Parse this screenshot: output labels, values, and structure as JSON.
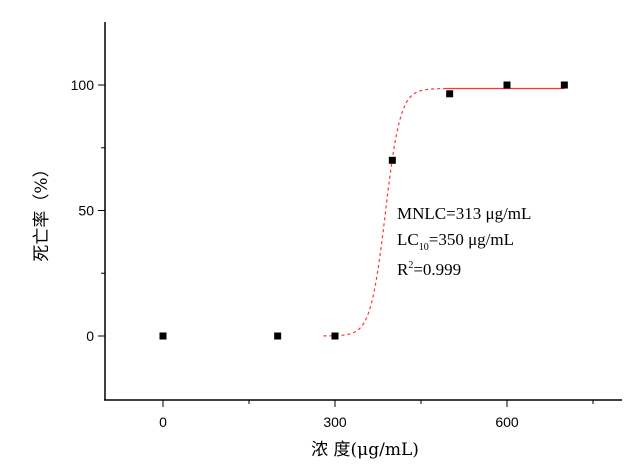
{
  "chart_data": {
    "type": "scatter",
    "title": "",
    "xlabel": "浓 度(μg/mL)",
    "ylabel": "死亡率（%）",
    "xlim": [
      -100,
      800
    ],
    "ylim": [
      -25,
      125
    ],
    "x_ticks": [
      0,
      300,
      600
    ],
    "x_tick_labels": [
      "0",
      "300",
      "600"
    ],
    "x_minor_ticks": [
      150,
      450,
      750
    ],
    "y_ticks": [
      0,
      50,
      100
    ],
    "y_tick_labels": [
      "0",
      "50",
      "100"
    ],
    "y_minor_ticks": [
      25,
      75
    ],
    "grid": false,
    "series": [
      {
        "x": [
          0,
          200,
          300,
          400,
          500,
          600,
          700
        ],
        "y": [
          0,
          0,
          0,
          70,
          96.5,
          100,
          100
        ],
        "marker": "square",
        "color": "#000000"
      }
    ],
    "fit_curve": {
      "type": "sigmoid",
      "color": "#ff3333",
      "x_range": [
        280,
        700
      ],
      "plateau": 98.6
    },
    "annotations": {
      "mnlc": "MNLC=313 μg/mL",
      "lc_prefix": "LC",
      "lc_sub": "10",
      "lc_suffix": "=350 μg/mL",
      "r_prefix": "R",
      "r_sup": "2",
      "r_suffix": "=0.999"
    }
  }
}
